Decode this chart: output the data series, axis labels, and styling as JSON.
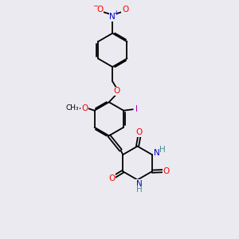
{
  "bg_color": "#eaeaf0",
  "bond_color": "#000000",
  "atom_colors": {
    "O": "#ff0000",
    "N": "#0000cd",
    "H": "#4a9090",
    "I": "#aa00aa",
    "C": "#000000"
  },
  "lw": 1.3,
  "fs": 7.5,
  "fs_small": 6.5
}
